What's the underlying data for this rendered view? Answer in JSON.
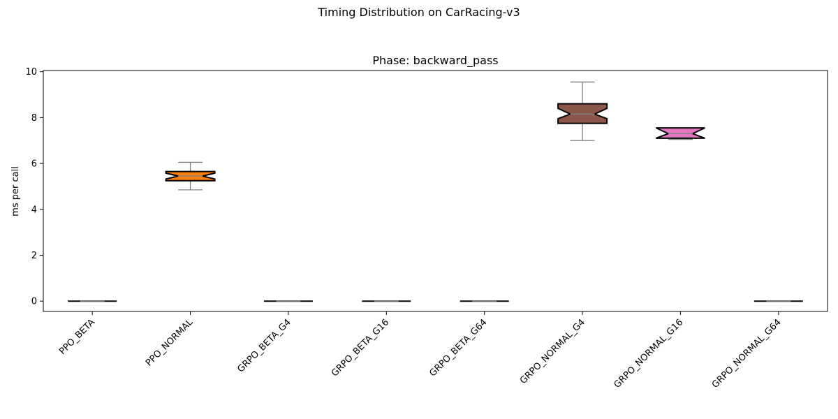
{
  "figure": {
    "suptitle": "Timing Distribution on CarRacing-v3"
  },
  "chart_data": {
    "type": "boxplot",
    "title": "Phase: backward_pass",
    "xlabel": "",
    "ylabel": "ms per call",
    "ylim": [
      -0.45,
      10.05
    ],
    "yticks": [
      0,
      2,
      4,
      6,
      8,
      10
    ],
    "notched": true,
    "grid": false,
    "categories": [
      "PPO_BETA",
      "PPO_NORMAL",
      "GRPO_BETA_G4",
      "GRPO_BETA_G16",
      "GRPO_BETA_G64",
      "GRPO_NORMAL_G4",
      "GRPO_NORMAL_G16",
      "GRPO_NORMAL_G64"
    ],
    "series": [
      {
        "whisker_low": 0.0,
        "q1": 0.0,
        "median": 0.0,
        "q3": 0.0,
        "whisker_high": 0.0,
        "notch_low": 0.0,
        "notch_high": 0.0,
        "color": "#1f77b4"
      },
      {
        "whisker_low": 4.85,
        "q1": 5.25,
        "median": 5.45,
        "q3": 5.65,
        "whisker_high": 6.05,
        "notch_low": 5.32,
        "notch_high": 5.58,
        "color": "#ff7f0e"
      },
      {
        "whisker_low": 0.0,
        "q1": 0.0,
        "median": 0.0,
        "q3": 0.0,
        "whisker_high": 0.0,
        "notch_low": 0.0,
        "notch_high": 0.0,
        "color": "#2ca02c"
      },
      {
        "whisker_low": 0.0,
        "q1": 0.0,
        "median": 0.0,
        "q3": 0.0,
        "whisker_high": 0.0,
        "notch_low": 0.0,
        "notch_high": 0.0,
        "color": "#d62728"
      },
      {
        "whisker_low": 0.0,
        "q1": 0.0,
        "median": 0.0,
        "q3": 0.0,
        "whisker_high": 0.0,
        "notch_low": 0.0,
        "notch_high": 0.0,
        "color": "#9467bd"
      },
      {
        "whisker_low": 7.0,
        "q1": 7.75,
        "median": 8.15,
        "q3": 8.6,
        "whisker_high": 9.55,
        "notch_low": 7.95,
        "notch_high": 8.4,
        "color": "#8c564b"
      },
      {
        "whisker_low": 7.05,
        "q1": 7.1,
        "median": 7.3,
        "q3": 7.55,
        "whisker_high": 7.55,
        "notch_low": 7.1,
        "notch_high": 7.55,
        "color": "#e377c2"
      },
      {
        "whisker_low": 0.0,
        "q1": 0.0,
        "median": 0.0,
        "q3": 0.0,
        "whisker_high": 0.0,
        "notch_low": 0.0,
        "notch_high": 0.0,
        "color": "#7f7f7f"
      }
    ]
  }
}
